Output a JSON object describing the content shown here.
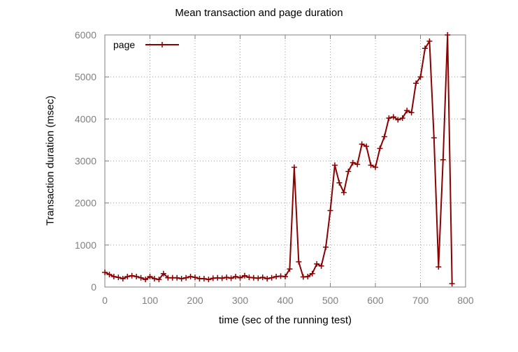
{
  "chart_data": {
    "type": "line",
    "title": "Mean transaction and page duration",
    "xlabel": "time (sec of the running test)",
    "ylabel": "Transaction duration (msec)",
    "xlim": [
      0,
      800
    ],
    "ylim": [
      0,
      6000
    ],
    "xticks": [
      0,
      100,
      200,
      300,
      400,
      500,
      600,
      700,
      800
    ],
    "yticks": [
      0,
      1000,
      2000,
      3000,
      4000,
      5000,
      6000
    ],
    "grid": true,
    "legend_position": "top-left",
    "series": [
      {
        "name": "page",
        "color": "#8b0000",
        "marker": "plus",
        "x": [
          0,
          10,
          20,
          30,
          40,
          50,
          60,
          70,
          80,
          90,
          100,
          110,
          120,
          130,
          140,
          150,
          160,
          170,
          180,
          190,
          200,
          210,
          220,
          230,
          240,
          250,
          260,
          270,
          280,
          290,
          300,
          310,
          320,
          330,
          340,
          350,
          360,
          370,
          380,
          390,
          400,
          410,
          420,
          430,
          440,
          450,
          460,
          470,
          480,
          490,
          500,
          510,
          520,
          530,
          540,
          550,
          560,
          570,
          580,
          590,
          600,
          610,
          620,
          630,
          640,
          650,
          660,
          670,
          680,
          690,
          700,
          710,
          720,
          730,
          740,
          750,
          760,
          770
        ],
        "y": [
          350,
          300,
          250,
          230,
          200,
          250,
          270,
          250,
          220,
          180,
          250,
          200,
          180,
          320,
          220,
          220,
          220,
          200,
          220,
          250,
          230,
          200,
          200,
          180,
          210,
          220,
          210,
          230,
          210,
          250,
          220,
          270,
          230,
          220,
          210,
          230,
          200,
          220,
          250,
          260,
          250,
          430,
          2850,
          600,
          240,
          250,
          320,
          550,
          500,
          950,
          1820,
          2900,
          2480,
          2250,
          2750,
          2960,
          2920,
          3400,
          3350,
          2900,
          2850,
          3300,
          3580,
          4020,
          4050,
          3980,
          4020,
          4200,
          4150,
          4850,
          5000,
          5680,
          5850,
          3550,
          480,
          3030,
          6000,
          80
        ]
      }
    ]
  }
}
